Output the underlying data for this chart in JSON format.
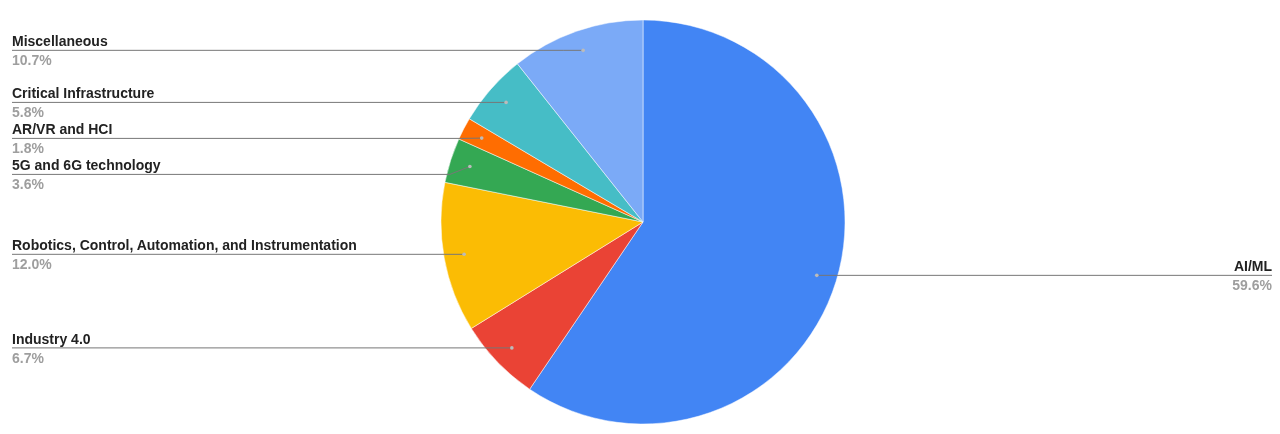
{
  "chart_data": {
    "type": "pie",
    "categories": [
      "AI/ML",
      "Industry 4.0",
      "Robotics, Control, Automation, and Instrumentation",
      "5G and 6G technology",
      "AR/VR and HCI",
      "Critical Infrastructure",
      "Miscellaneous"
    ],
    "values": [
      59.6,
      6.7,
      12.0,
      3.6,
      1.8,
      5.8,
      10.7
    ],
    "value_labels": [
      "59.6%",
      "6.7%",
      "12.0%",
      "3.6%",
      "1.8%",
      "5.8%",
      "10.7%"
    ],
    "colors": [
      "#4285f4",
      "#ea4335",
      "#fbbc04",
      "#34a853",
      "#ff6d01",
      "#46bdc6",
      "#7baaf7"
    ]
  }
}
